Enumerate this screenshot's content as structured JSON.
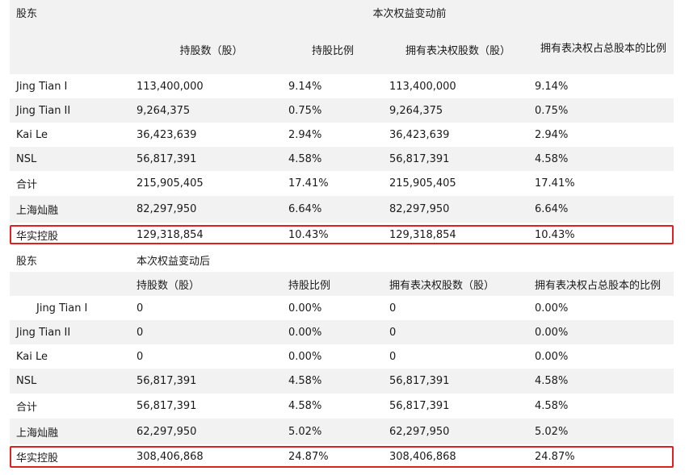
{
  "before": {
    "shareholder_label": "股东",
    "group_title": "本次权益变动前",
    "columns": [
      "持股数（股）",
      "持股比例",
      "拥有表决权股数（股）",
      "拥有表决权占总股本的比例"
    ],
    "rows": [
      {
        "name": "Jing Tian I",
        "shares": "113,400,000",
        "ratio": "9.14%",
        "vote_shares": "113,400,000",
        "vote_ratio": "9.14%"
      },
      {
        "name": "Jing Tian II",
        "shares": "9,264,375",
        "ratio": "0.75%",
        "vote_shares": "9,264,375",
        "vote_ratio": "0.75%"
      },
      {
        "name": "Kai Le",
        "shares": "36,423,639",
        "ratio": "2.94%",
        "vote_shares": "36,423,639",
        "vote_ratio": "2.94%"
      },
      {
        "name": "NSL",
        "shares": "56,817,391",
        "ratio": "4.58%",
        "vote_shares": "56,817,391",
        "vote_ratio": "4.58%"
      },
      {
        "name": "合计",
        "shares": "215,905,405",
        "ratio": "17.41%",
        "vote_shares": "215,905,405",
        "vote_ratio": "17.41%"
      },
      {
        "name": "上海灿融",
        "shares": "82,297,950",
        "ratio": "6.64%",
        "vote_shares": "82,297,950",
        "vote_ratio": "6.64%"
      },
      {
        "name": "华实控股",
        "shares": "129,318,854",
        "ratio": "10.43%",
        "vote_shares": "129,318,854",
        "vote_ratio": "10.43%"
      }
    ]
  },
  "after": {
    "shareholder_label": "股东",
    "group_title": "本次权益变动后",
    "columns": [
      "持股数（股）",
      "持股比例",
      "拥有表决权股数（股）",
      "拥有表决权占总股本的比例"
    ],
    "rows": [
      {
        "name": "Jing Tian I",
        "shares": "0",
        "ratio": "0.00%",
        "vote_shares": "0",
        "vote_ratio": "0.00%"
      },
      {
        "name": "Jing Tian II",
        "shares": "0",
        "ratio": "0.00%",
        "vote_shares": "0",
        "vote_ratio": "0.00%"
      },
      {
        "name": "Kai Le",
        "shares": "0",
        "ratio": "0.00%",
        "vote_shares": "0",
        "vote_ratio": "0.00%"
      },
      {
        "name": "NSL",
        "shares": "56,817,391",
        "ratio": "4.58%",
        "vote_shares": "56,817,391",
        "vote_ratio": "4.58%"
      },
      {
        "name": "合计",
        "shares": "56,817,391",
        "ratio": "4.58%",
        "vote_shares": "56,817,391",
        "vote_ratio": "4.58%"
      },
      {
        "name": "上海灿融",
        "shares": "62,297,950",
        "ratio": "5.02%",
        "vote_shares": "62,297,950",
        "vote_ratio": "5.02%"
      },
      {
        "name": "华实控股",
        "shares": "308,406,868",
        "ratio": "24.87%",
        "vote_shares": "308,406,868",
        "vote_ratio": "24.87%"
      }
    ]
  },
  "colors": {
    "stripe": "#f2f2f2",
    "highlight": "#e02020"
  }
}
